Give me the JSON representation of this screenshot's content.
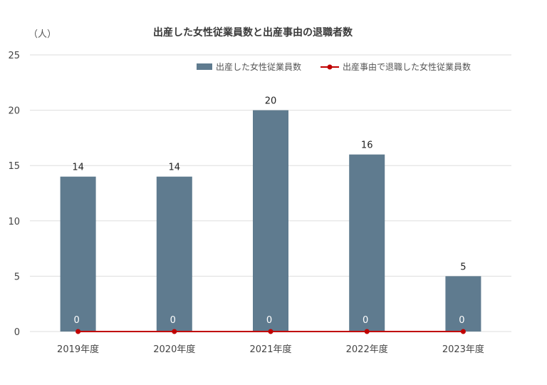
{
  "chart_data": {
    "type": "bar",
    "title": "出産した女性従業員数と出産事由の退職者数",
    "unit_label": "（人）",
    "categories": [
      "2019年度",
      "2020年度",
      "2021年度",
      "2022年度",
      "2023年度"
    ],
    "series": [
      {
        "name": "出産した女性従業員数",
        "kind": "bar",
        "color": "#5f7b8f",
        "values": [
          14,
          14,
          20,
          16,
          5
        ],
        "labels": [
          "14",
          "14",
          "20",
          "16",
          "5"
        ]
      },
      {
        "name": "出産事由で退職した女性従業員数",
        "kind": "line",
        "color": "#c00000",
        "values": [
          0,
          0,
          0,
          0,
          0
        ],
        "labels": [
          "0",
          "0",
          "0",
          "0",
          "0"
        ]
      }
    ],
    "ylim": [
      0,
      25
    ],
    "yticks": [
      "0",
      "5",
      "10",
      "15",
      "20",
      "25"
    ],
    "legend": "top-right",
    "grid": true
  }
}
